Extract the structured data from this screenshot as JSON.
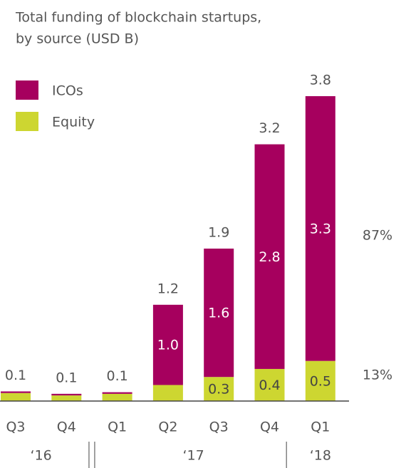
{
  "chart_data": {
    "type": "stacked_bar",
    "title_lines": [
      "Total funding of blockchain startups,",
      "by source (USD B)"
    ],
    "categories": [
      "Q3",
      "Q4",
      "Q1",
      "Q2",
      "Q3",
      "Q4",
      "Q1"
    ],
    "x_groups": [
      {
        "label": "‘16",
        "count": 2
      },
      {
        "label": "‘17",
        "count": 4
      },
      {
        "label": "‘18",
        "count": 1
      }
    ],
    "series": [
      {
        "name": "Equity",
        "color": "#cdd631",
        "values": [
          0.1,
          0.07,
          0.09,
          0.2,
          0.3,
          0.4,
          0.5
        ],
        "value_labels": [
          null,
          null,
          null,
          null,
          "0.3",
          "0.4",
          "0.5"
        ],
        "share_label": "13%"
      },
      {
        "name": "ICOs",
        "color": "#a6005e",
        "values": [
          0.02,
          0.02,
          0.02,
          1.0,
          1.6,
          2.8,
          3.3
        ],
        "value_labels": [
          null,
          null,
          null,
          "1.0",
          "1.6",
          "2.8",
          "3.3"
        ],
        "share_label": "87%"
      }
    ],
    "totals": [
      0.1,
      0.1,
      0.1,
      1.2,
      1.9,
      3.2,
      3.8
    ],
    "ylim": [
      0,
      3.8
    ]
  }
}
